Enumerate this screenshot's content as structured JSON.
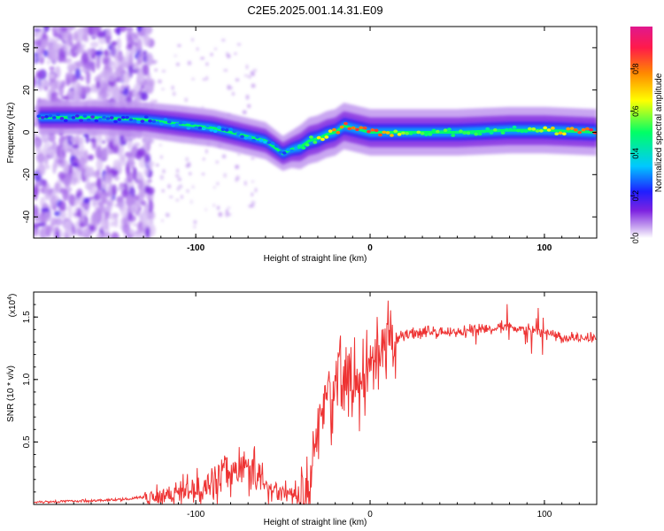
{
  "title": "C2E5.2025.001.14.31.E09",
  "chart_data": [
    {
      "type": "heatmap",
      "title": "C2E5.2025.001.14.31.E09",
      "xlabel": "Height of straight line (km)",
      "ylabel": "Frequency (Hz)",
      "xlim": [
        -193,
        130
      ],
      "ylim": [
        -50,
        50
      ],
      "x_ticks": [
        -100,
        0,
        100
      ],
      "y_ticks": [
        -40,
        -20,
        0,
        20,
        40
      ],
      "colorbar": {
        "label": "Normalized spectral amplitude",
        "range": [
          0,
          1
        ],
        "ticks": [
          0.0,
          0.2,
          0.4,
          0.6,
          0.8
        ],
        "colors": [
          "#ffffff",
          "#c9a8f0",
          "#7d22e0",
          "#1f1fff",
          "#00c8ff",
          "#00ff66",
          "#ffff00",
          "#ff8800",
          "#ff1a4a",
          "#e0188e"
        ]
      },
      "ridge": {
        "x": [
          -190,
          -160,
          -130,
          -110,
          -90,
          -70,
          -60,
          -50,
          -45,
          -40,
          -35,
          -30,
          -25,
          -20,
          -15,
          -10,
          -5,
          0,
          20,
          50,
          80,
          100,
          130
        ],
        "frequency": [
          7,
          7,
          6,
          4,
          2,
          -2,
          -4,
          -10,
          -8,
          -7,
          -4,
          -3,
          -1,
          0,
          3,
          2,
          1,
          0,
          0,
          0,
          1,
          1,
          0
        ],
        "amplitude": [
          0.22,
          0.22,
          0.25,
          0.3,
          0.3,
          0.3,
          0.3,
          0.25,
          0.3,
          0.45,
          0.5,
          0.6,
          0.65,
          0.75,
          0.8,
          0.85,
          0.85,
          0.9,
          0.55,
          0.5,
          0.5,
          0.6,
          0.9
        ]
      },
      "noise_region": {
        "x_range": [
          -193,
          -125
        ],
        "frequency_range": [
          -50,
          50
        ]
      }
    },
    {
      "type": "line",
      "xlabel": "Height of straight line (km)",
      "ylabel": "SNR (10 * v/v)",
      "y_scale_label": "(x10",
      "y_scale_exponent": "4",
      "xlim": [
        -193,
        130
      ],
      "ylim": [
        0,
        1.7
      ],
      "x_ticks": [
        -100,
        0,
        100
      ],
      "y_ticks": [
        0.5,
        1.0,
        1.5
      ],
      "y_tick_labels": [
        "0.5",
        "1.0",
        "1.5"
      ],
      "color": "#ee3333",
      "series": [
        {
          "x": [
            -193,
            -160,
            -140,
            -130,
            -120,
            -110,
            -100,
            -90,
            -80,
            -75,
            -70,
            -65,
            -60,
            -55,
            -50,
            -45,
            -40,
            -35,
            -32,
            -30,
            -28,
            -25,
            -22,
            -20,
            -17,
            -15,
            -12,
            -10,
            -8,
            -5,
            0,
            5,
            10,
            15,
            20,
            30,
            40,
            50,
            60,
            70,
            80,
            90,
            100,
            110,
            120,
            130
          ],
          "values": [
            0.02,
            0.03,
            0.04,
            0.06,
            0.08,
            0.1,
            0.13,
            0.18,
            0.26,
            0.3,
            0.3,
            0.25,
            0.15,
            0.12,
            0.1,
            0.08,
            0.06,
            0.08,
            0.4,
            0.6,
            0.75,
            0.85,
            0.9,
            0.95,
            1.1,
            1.0,
            1.15,
            0.9,
            1.05,
            0.95,
            1.05,
            1.12,
            1.25,
            1.32,
            1.36,
            1.38,
            1.38,
            1.38,
            1.39,
            1.41,
            1.43,
            1.4,
            1.38,
            1.34,
            1.33,
            1.34
          ]
        }
      ]
    }
  ]
}
